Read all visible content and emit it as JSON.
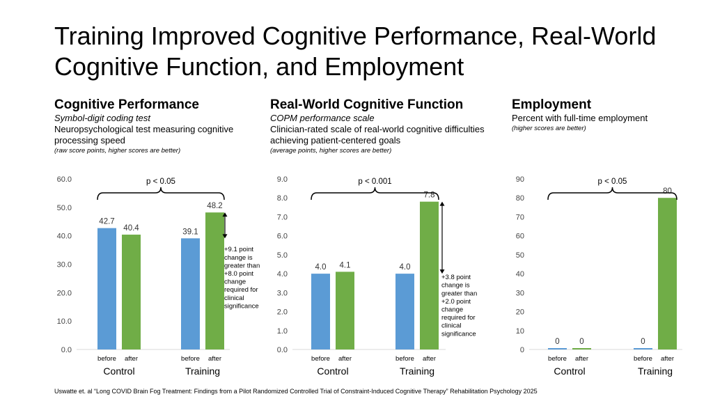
{
  "slide": {
    "title": "Training Improved Cognitive Performance, Real-World Cognitive Function, and Employment",
    "citation": "Uswatte et. al “Long COVID Brain Fog Treatment: Findings from a Pilot Randomized Controlled Trial of Constraint-Induced Cognitive Therapy” Rehabilitation Psychology 2025"
  },
  "panels": [
    {
      "title": "Cognitive Performance",
      "subtitle": "Symbol-digit coding test",
      "description": "Neuropsychological test measuring cognitive processing speed",
      "note": "(raw score points, higher scores are better)"
    },
    {
      "title": "Real-World Cognitive Function",
      "subtitle": "COPM performance scale",
      "description": "Clinician-rated scale of real-world cognitive difficulties achieving patient-centered goals",
      "note": "(average points, higher scores are better)"
    },
    {
      "title": "Employment",
      "subtitle": "",
      "description": "Percent with full-time employment",
      "note": "(higher scores are better)"
    }
  ],
  "colors": {
    "before": "#5b9bd5",
    "after": "#70ad47",
    "axis": "#d9d9d9"
  },
  "chart_data": [
    {
      "type": "bar",
      "groups": [
        "Control",
        "Training"
      ],
      "categories": [
        "before",
        "after"
      ],
      "series": [
        {
          "group": "Control",
          "values": [
            42.7,
            40.4
          ],
          "labels": [
            "42.7",
            "40.4"
          ]
        },
        {
          "group": "Training",
          "values": [
            39.1,
            48.2
          ],
          "labels": [
            "39.1",
            "48.2"
          ]
        }
      ],
      "ylim": [
        0,
        60
      ],
      "yticks": [
        "0.0",
        "10.0",
        "20.0",
        "30.0",
        "40.0",
        "50.0",
        "60.0"
      ],
      "significance": "p < 0.05",
      "annotation": [
        "+9.1 point",
        "change is",
        "greater than",
        "+8.0 point",
        "change",
        "required for",
        "clinical",
        "significance"
      ]
    },
    {
      "type": "bar",
      "groups": [
        "Control",
        "Training"
      ],
      "categories": [
        "before",
        "after"
      ],
      "series": [
        {
          "group": "Control",
          "values": [
            4.0,
            4.1
          ],
          "labels": [
            "4.0",
            "4.1"
          ]
        },
        {
          "group": "Training",
          "values": [
            4.0,
            7.8
          ],
          "labels": [
            "4.0",
            "7.8"
          ]
        }
      ],
      "ylim": [
        0,
        9
      ],
      "yticks": [
        "0.0",
        "1.0",
        "2.0",
        "3.0",
        "4.0",
        "5.0",
        "6.0",
        "7.0",
        "8.0",
        "9.0"
      ],
      "significance": "p < 0.001",
      "annotation": [
        "+3.8 point",
        "change is",
        "greater than",
        "+2.0 point",
        "change",
        "required for",
        "clinical",
        "significance"
      ]
    },
    {
      "type": "bar",
      "groups": [
        "Control",
        "Training"
      ],
      "categories": [
        "before",
        "after"
      ],
      "series": [
        {
          "group": "Control",
          "values": [
            0,
            0
          ],
          "labels": [
            "0",
            "0"
          ]
        },
        {
          "group": "Training",
          "values": [
            0,
            80
          ],
          "labels": [
            "0",
            "80"
          ]
        }
      ],
      "ylim": [
        0,
        90
      ],
      "yticks": [
        "0",
        "10",
        "20",
        "30",
        "40",
        "50",
        "60",
        "70",
        "80",
        "90"
      ],
      "significance": "p < 0.05",
      "annotation": []
    }
  ]
}
